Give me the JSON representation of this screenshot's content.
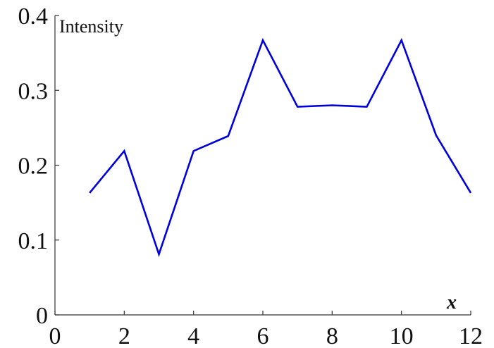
{
  "chart_data": {
    "type": "line",
    "xlabel": "x",
    "ylabel": "Intensity",
    "xlim": [
      0,
      12
    ],
    "ylim": [
      0,
      0.4
    ],
    "xticks": [
      "0",
      "2",
      "4",
      "6",
      "8",
      "10",
      "12"
    ],
    "yticks": [
      "0",
      "0.1",
      "0.2",
      "0.3",
      "0.4"
    ],
    "grid": false,
    "series": [
      {
        "color": "#0000dd",
        "x": [
          1,
          2,
          3,
          4,
          5,
          6,
          7,
          8,
          9,
          10,
          11,
          12
        ],
        "y": [
          0.163,
          0.219,
          0.081,
          0.219,
          0.239,
          0.367,
          0.278,
          0.28,
          0.278,
          0.367,
          0.24,
          0.163
        ]
      }
    ]
  }
}
